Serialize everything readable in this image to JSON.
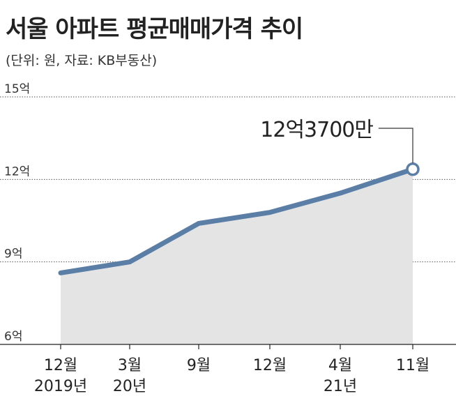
{
  "chart_data": {
    "type": "area",
    "title": "서울 아파트 평균매매가격 추이",
    "subtitle": "(단위: 원, 자료: KB부동산)",
    "categories": [
      [
        "12월",
        "2019년"
      ],
      [
        "3월",
        "20년"
      ],
      [
        "9월",
        ""
      ],
      [
        "12월",
        ""
      ],
      [
        "4월",
        "21년"
      ],
      [
        "11월",
        ""
      ]
    ],
    "values": [
      8.6,
      9.0,
      10.4,
      10.8,
      11.5,
      12.37
    ],
    "yticks": [
      6,
      9,
      12,
      15
    ],
    "ytick_labels": [
      "6억",
      "9억",
      "12억",
      "15억"
    ],
    "ylim": [
      6,
      15
    ],
    "grid": true,
    "annotation": "12억3700만",
    "line_color": "#5b7ea6",
    "fill_color": "#e4e4e4",
    "grid_color": "#555555"
  }
}
